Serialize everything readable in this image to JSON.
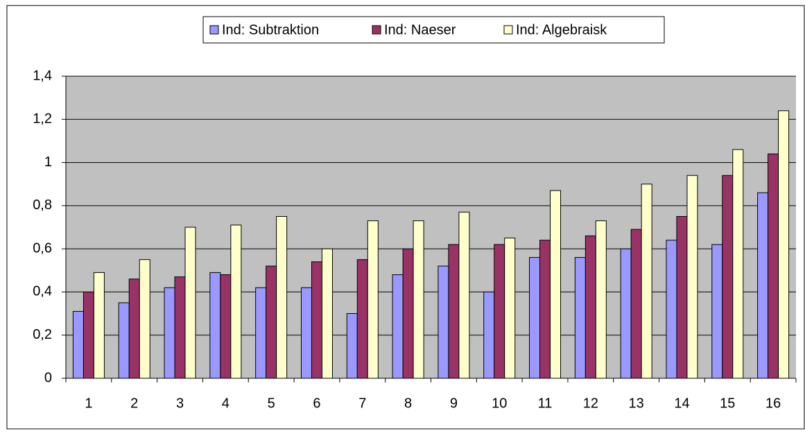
{
  "chart_data": {
    "type": "bar",
    "categories": [
      "1",
      "2",
      "3",
      "4",
      "5",
      "6",
      "7",
      "8",
      "9",
      "10",
      "11",
      "12",
      "13",
      "14",
      "15",
      "16"
    ],
    "series": [
      {
        "name": "Ind: Subtraktion",
        "color": "#9999ff",
        "values": [
          0.31,
          0.35,
          0.42,
          0.49,
          0.42,
          0.42,
          0.3,
          0.48,
          0.52,
          0.4,
          0.56,
          0.56,
          0.6,
          0.64,
          0.62,
          0.86
        ]
      },
      {
        "name": "Ind: Naeser",
        "color": "#993366",
        "values": [
          0.4,
          0.46,
          0.47,
          0.48,
          0.52,
          0.54,
          0.55,
          0.6,
          0.62,
          0.62,
          0.64,
          0.66,
          0.69,
          0.75,
          0.94,
          1.04
        ]
      },
      {
        "name": "Ind: Algebraisk",
        "color": "#ffffcc",
        "values": [
          0.49,
          0.55,
          0.7,
          0.71,
          0.75,
          0.6,
          0.73,
          0.73,
          0.77,
          0.65,
          0.87,
          0.73,
          0.9,
          0.94,
          1.06,
          1.24
        ]
      }
    ],
    "ylim": [
      0,
      1.4
    ],
    "yticks": [
      0,
      {
        "value": 0.2,
        "label": "0,2"
      },
      {
        "value": 0.4,
        "label": "0,4"
      },
      {
        "value": 0.6,
        "label": "0,6"
      },
      {
        "value": 0.8,
        "label": "0,8"
      },
      1,
      {
        "value": 1.2,
        "label": "1,2"
      },
      {
        "value": 1.4,
        "label": "1,4"
      }
    ],
    "grid": true,
    "plot_background": "#c0c0c0",
    "legend": "top"
  }
}
